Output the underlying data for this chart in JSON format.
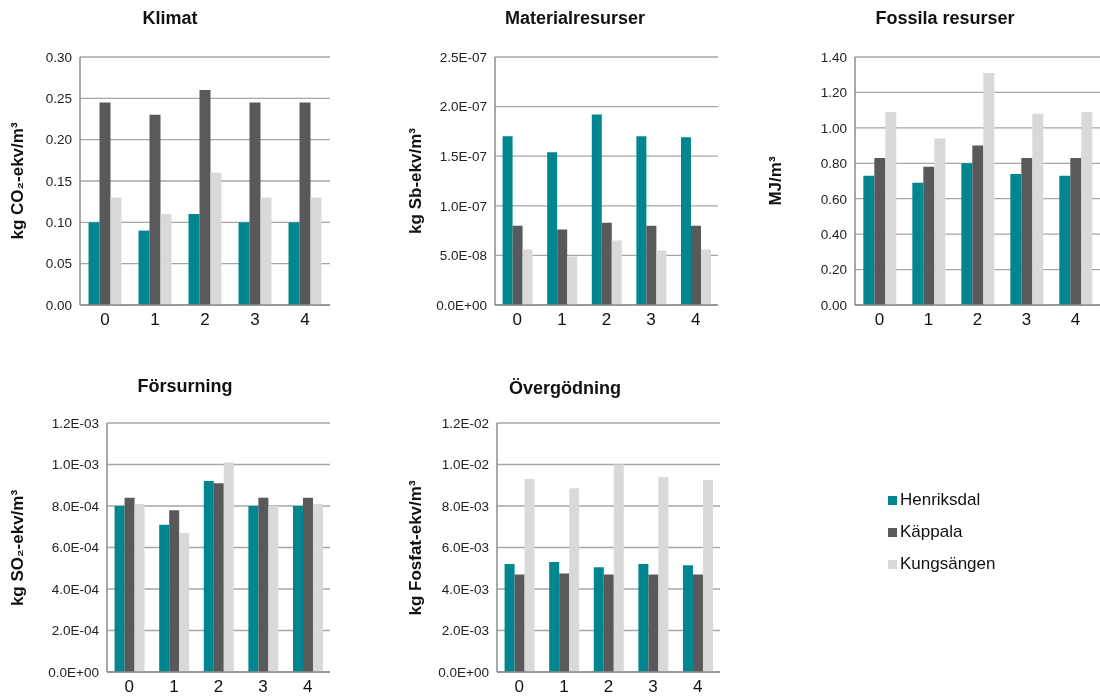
{
  "chart_data": [
    {
      "type": "bar",
      "title": "Klimat",
      "ylabel": "kg CO₂-ekv/m³",
      "categories": [
        "0",
        "1",
        "2",
        "3",
        "4"
      ],
      "ylim": [
        0,
        0.3
      ],
      "yticks": [
        {
          "value": 0,
          "label": "0.00"
        },
        {
          "value": 0.05,
          "label": "0.05"
        },
        {
          "value": 0.1,
          "label": "0.10"
        },
        {
          "value": 0.15,
          "label": "0.15"
        },
        {
          "value": 0.2,
          "label": "0.20"
        },
        {
          "value": 0.25,
          "label": "0.25"
        },
        {
          "value": 0.3,
          "label": "0.30"
        }
      ],
      "grid": "y",
      "series": [
        {
          "color": "#00868f",
          "values": [
            0.1,
            0.09,
            0.11,
            0.1,
            0.1
          ]
        },
        {
          "color": "#58595b",
          "values": [
            0.245,
            0.23,
            0.26,
            0.245,
            0.245
          ]
        },
        {
          "color": "#d9d9d9",
          "values": [
            0.13,
            0.11,
            0.16,
            0.13,
            0.13
          ]
        }
      ]
    },
    {
      "type": "bar",
      "title": "Materialresurser",
      "ylabel": "kg Sb-ekv/m³",
      "categories": [
        "0",
        "1",
        "2",
        "3",
        "4"
      ],
      "ylim": [
        0,
        2.5e-07
      ],
      "yticks": [
        {
          "value": 0,
          "label": "0.0E+00"
        },
        {
          "value": 5e-08,
          "label": "5.0E-08"
        },
        {
          "value": 1e-07,
          "label": "1.0E-07"
        },
        {
          "value": 1.5e-07,
          "label": "1.5E-07"
        },
        {
          "value": 2e-07,
          "label": "2.0E-07"
        },
        {
          "value": 2.5e-07,
          "label": "2.5E-07"
        }
      ],
      "grid": "y",
      "series": [
        {
          "color": "#00868f",
          "values": [
            1.7e-07,
            1.54e-07,
            1.92e-07,
            1.7e-07,
            1.69e-07
          ]
        },
        {
          "color": "#58595b",
          "values": [
            8e-08,
            7.6e-08,
            8.3e-08,
            8e-08,
            8e-08
          ]
        },
        {
          "color": "#d9d9d9",
          "values": [
            5.6e-08,
            4.9e-08,
            6.5e-08,
            5.5e-08,
            5.6e-08
          ]
        }
      ]
    },
    {
      "type": "bar",
      "title": "Fossila resurser",
      "ylabel": "MJ/m³",
      "categories": [
        "0",
        "1",
        "2",
        "3",
        "4"
      ],
      "ylim": [
        0,
        1.4
      ],
      "yticks": [
        {
          "value": 0,
          "label": "0.00"
        },
        {
          "value": 0.2,
          "label": "0.20"
        },
        {
          "value": 0.4,
          "label": "0.40"
        },
        {
          "value": 0.6,
          "label": "0.60"
        },
        {
          "value": 0.8,
          "label": "0.80"
        },
        {
          "value": 1,
          "label": "1.00"
        },
        {
          "value": 1.2,
          "label": "1.20"
        },
        {
          "value": 1.4,
          "label": "1.40"
        }
      ],
      "grid": "y",
      "series": [
        {
          "color": "#00868f",
          "values": [
            0.73,
            0.69,
            0.8,
            0.74,
            0.73
          ]
        },
        {
          "color": "#58595b",
          "values": [
            0.83,
            0.78,
            0.9,
            0.83,
            0.83
          ]
        },
        {
          "color": "#d9d9d9",
          "values": [
            1.09,
            0.94,
            1.31,
            1.08,
            1.09
          ]
        }
      ]
    },
    {
      "type": "bar",
      "title": "Försurning",
      "ylabel": "kg SO₂-ekv/m³",
      "categories": [
        "0",
        "1",
        "2",
        "3",
        "4"
      ],
      "ylim": [
        0,
        0.0012
      ],
      "yticks": [
        {
          "value": 0,
          "label": "0.0E+00"
        },
        {
          "value": 0.0002,
          "label": "2.0E-04"
        },
        {
          "value": 0.0004,
          "label": "4.0E-04"
        },
        {
          "value": 0.0006,
          "label": "6.0E-04"
        },
        {
          "value": 0.0008,
          "label": "8.0E-04"
        },
        {
          "value": 0.001,
          "label": "1.0E-03"
        },
        {
          "value": 0.0012,
          "label": "1.2E-03"
        }
      ],
      "grid": "y",
      "series": [
        {
          "color": "#00868f",
          "values": [
            0.0008,
            0.00071,
            0.00092,
            0.0008,
            0.0008
          ]
        },
        {
          "color": "#58595b",
          "values": [
            0.00084,
            0.00078,
            0.00091,
            0.00084,
            0.00084
          ]
        },
        {
          "color": "#d9d9d9",
          "values": [
            0.00081,
            0.00067,
            0.00101,
            0.0008,
            0.00081
          ]
        }
      ]
    },
    {
      "type": "bar",
      "title": "Övergödning",
      "ylabel": "kg Fosfat-ekv/m³",
      "categories": [
        "0",
        "1",
        "2",
        "3",
        "4"
      ],
      "ylim": [
        0,
        0.012
      ],
      "yticks": [
        {
          "value": 0,
          "label": "0.0E+00"
        },
        {
          "value": 0.002,
          "label": "2.0E-03"
        },
        {
          "value": 0.004,
          "label": "4.0E-03"
        },
        {
          "value": 0.006,
          "label": "6.0E-03"
        },
        {
          "value": 0.008,
          "label": "8.0E-03"
        },
        {
          "value": 0.01,
          "label": "1.0E-02"
        },
        {
          "value": 0.012,
          "label": "1.2E-02"
        }
      ],
      "grid": "y",
      "legend": "right",
      "series": [
        {
          "name": "Henriksdal",
          "color": "#00868f",
          "values": [
            0.0052,
            0.0053,
            0.00505,
            0.0052,
            0.00515
          ]
        },
        {
          "name": "Käppala",
          "color": "#58595b",
          "values": [
            0.0047,
            0.00475,
            0.0047,
            0.0047,
            0.0047
          ]
        },
        {
          "name": "Kungsängen",
          "color": "#d9d9d9",
          "values": [
            0.0093,
            0.00885,
            0.01,
            0.0094,
            0.00925
          ]
        }
      ]
    }
  ]
}
